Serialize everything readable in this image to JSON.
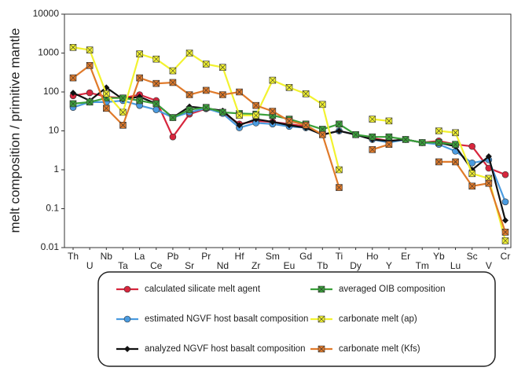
{
  "chart_data": {
    "type": "line",
    "y_label": "melt composition / primitive mantle",
    "log_y": true,
    "ylim": [
      0.01,
      10000
    ],
    "yticks": [
      0.01,
      0.1,
      1,
      10,
      100,
      1000,
      10000
    ],
    "categories": [
      "Th",
      "U",
      "Nb",
      "Ta",
      "La",
      "Ce",
      "Pb",
      "Sr",
      "Pr",
      "Nd",
      "Hf",
      "Zr",
      "Sm",
      "Eu",
      "Gd",
      "Tb",
      "Ti",
      "Dy",
      "Ho",
      "Y",
      "Er",
      "Tm",
      "Yb",
      "Lu",
      "Sc",
      "V",
      "Cr"
    ],
    "series": [
      {
        "name": "calculated silicate melt agent",
        "color": "#d7263d",
        "marker": "circle",
        "values": [
          80,
          95,
          75,
          70,
          85,
          60,
          7,
          27,
          37,
          30,
          15,
          18,
          17,
          15,
          13,
          8,
          10,
          8,
          6.5,
          5.5,
          6,
          5,
          5.5,
          4.5,
          4,
          1.1,
          0.75
        ]
      },
      {
        "name": "estimated NGVF host basalt composition",
        "color": "#4a9be0",
        "marker": "circle",
        "values": [
          40,
          55,
          55,
          60,
          45,
          35,
          22,
          30,
          38,
          28,
          12,
          16,
          15,
          13,
          12,
          8,
          10,
          8,
          6,
          5,
          6,
          5,
          4.5,
          3,
          1.5,
          1.8,
          0.15
        ]
      },
      {
        "name": "analyzed NGVF host basalt composition",
        "color": "#111111",
        "marker": "diamond",
        "values": [
          95,
          60,
          130,
          65,
          75,
          50,
          22,
          42,
          38,
          33,
          14,
          20,
          17,
          14,
          12,
          8,
          10,
          8,
          6,
          5.5,
          6,
          5,
          5,
          4,
          1,
          2.2,
          0.05
        ]
      },
      {
        "name": "averaged OIB composition",
        "color": "#3aa03a",
        "marker": "xsquare",
        "values": [
          50,
          55,
          70,
          70,
          60,
          50,
          22,
          35,
          40,
          30,
          28,
          27,
          25,
          20,
          15,
          11,
          15,
          8,
          7,
          7,
          6,
          5,
          5,
          4.5,
          null,
          null,
          null
        ]
      },
      {
        "name": "carbonate melt (ap)",
        "color": "#f2f230",
        "marker": "xsquare",
        "values": [
          1400,
          1200,
          90,
          30,
          950,
          700,
          350,
          1000,
          520,
          430,
          25,
          25,
          200,
          130,
          90,
          48,
          1,
          null,
          20,
          18,
          null,
          null,
          10,
          9,
          0.8,
          0.6,
          0.015
        ]
      },
      {
        "name": "carbonate melt (Kfs)",
        "color": "#e07a2a",
        "marker": "xsquare",
        "values": [
          230,
          480,
          38,
          14,
          230,
          165,
          175,
          85,
          110,
          85,
          100,
          45,
          32,
          18,
          14,
          8,
          0.35,
          null,
          3.3,
          4.5,
          null,
          null,
          1.6,
          1.6,
          0.38,
          0.45,
          0.025
        ]
      }
    ]
  }
}
